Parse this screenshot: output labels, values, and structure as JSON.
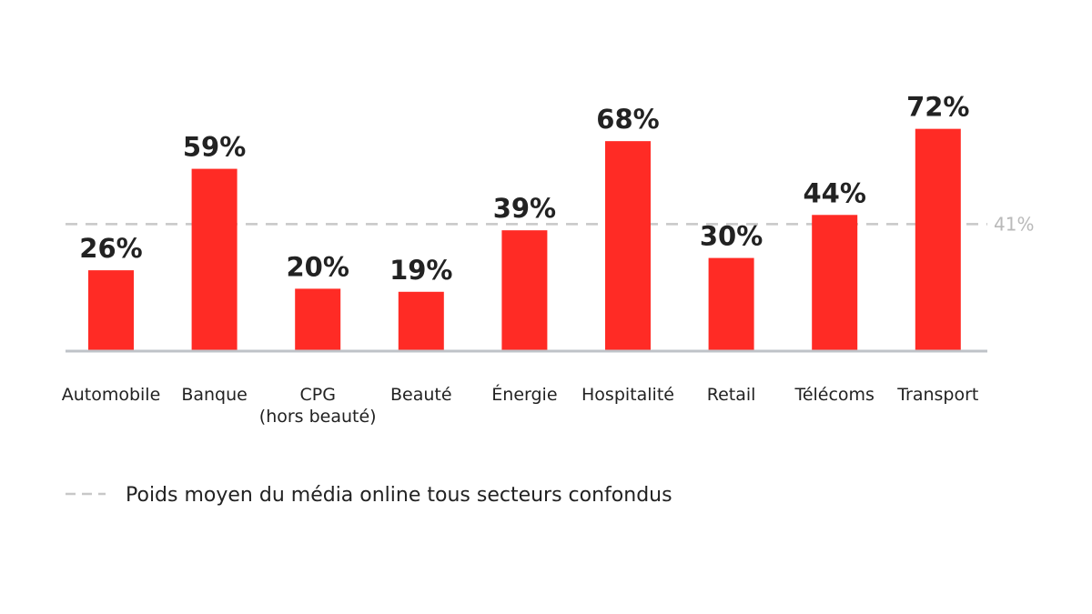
{
  "chart_data": {
    "type": "bar",
    "categories": [
      [
        "Automobile"
      ],
      [
        "Banque"
      ],
      [
        "CPG",
        "(hors beauté)"
      ],
      [
        "Beauté"
      ],
      [
        "Énergie"
      ],
      [
        "Hospitalité"
      ],
      [
        "Retail"
      ],
      [
        "Télécoms"
      ],
      [
        "Transport"
      ]
    ],
    "values": [
      26,
      59,
      20,
      19,
      39,
      68,
      30,
      44,
      72
    ],
    "value_labels": [
      "26%",
      "59%",
      "20%",
      "19%",
      "39%",
      "68%",
      "30%",
      "44%",
      "72%"
    ],
    "reference_line": {
      "value": 41,
      "label": "41%",
      "style": "dashed"
    },
    "legend": {
      "entries": [
        "Poids moyen du média online tous secteurs confondus"
      ],
      "placement": "bottom-left"
    },
    "title": "",
    "xlabel": "",
    "ylabel": "",
    "ylim": [
      0,
      72
    ],
    "grid": false,
    "colors": {
      "bar": "#ff2b25",
      "reference": "#c8c8c8",
      "reference_label": "#b9b9b9",
      "baseline": "#bfc3c8",
      "text": "#222222"
    }
  }
}
